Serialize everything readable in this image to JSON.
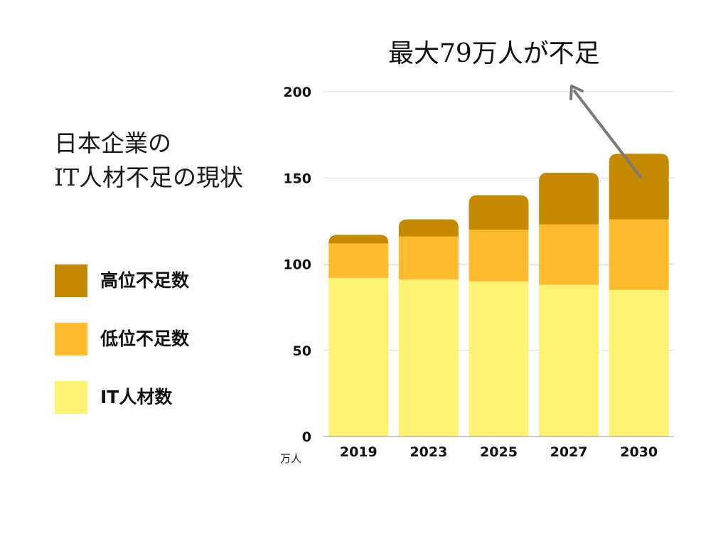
{
  "page": {
    "title_lines": [
      "日本企業の",
      "IT人材不足の現状"
    ]
  },
  "colors": {
    "senior_shortage": "#C68A00",
    "junior_shortage": "#FDBB2D",
    "it_workforce": "#FEF275",
    "grid": "#d9d9d9",
    "axis": "#999999",
    "arrow": "#7a7a7a"
  },
  "legend": {
    "items": [
      {
        "label": "高位不足数",
        "color": "#C68A00"
      },
      {
        "label": "低位不足数",
        "color": "#FDBB2D"
      },
      {
        "label": "IT人材数",
        "color": "#FEF275"
      }
    ]
  },
  "annotation": {
    "text": "最大79万人が不足"
  },
  "chart_data": {
    "type": "bar",
    "stacked": true,
    "categories": [
      "2019",
      "2023",
      "2025",
      "2027",
      "2030"
    ],
    "series": [
      {
        "name": "IT人材数",
        "color": "#FEF275",
        "values": [
          92,
          91,
          90,
          88,
          85
        ]
      },
      {
        "name": "低位不足数",
        "color": "#FDBB2D",
        "values": [
          20,
          25,
          30,
          35,
          41
        ]
      },
      {
        "name": "高位不足数",
        "color": "#C68A00",
        "values": [
          5,
          10,
          20,
          30,
          38
        ]
      }
    ],
    "yticks": [
      0,
      50,
      100,
      150,
      200
    ],
    "ylim": [
      0,
      200
    ],
    "unit": "万人",
    "grid": true,
    "legend_position": "left"
  }
}
